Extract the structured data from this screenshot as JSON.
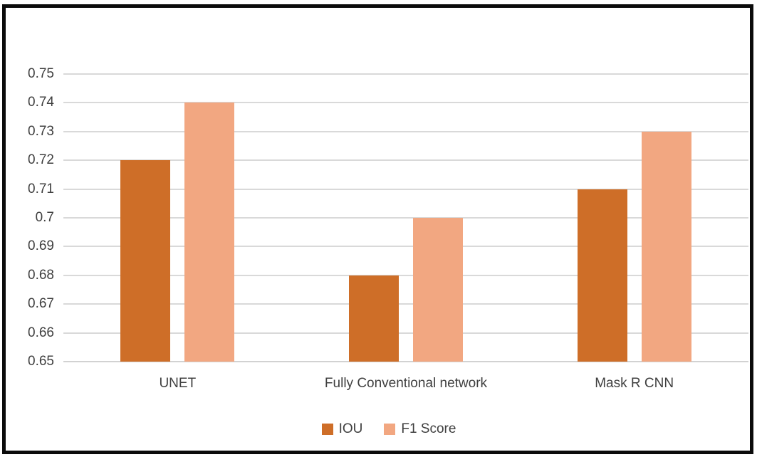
{
  "figure": {
    "background": "#ffffff",
    "border_color": "#0b0b0b"
  },
  "chart_data": {
    "type": "bar",
    "title": "",
    "xlabel": "",
    "ylabel": "",
    "categories": [
      "UNET",
      "Fully Conventional network",
      "Mask R CNN"
    ],
    "series": [
      {
        "name": "IOU",
        "color": "#CE6E28",
        "values": [
          0.72,
          0.68,
          0.71
        ]
      },
      {
        "name": "F1 Score",
        "color": "#F2A781",
        "values": [
          0.74,
          0.7,
          0.73
        ]
      }
    ],
    "ylim": [
      0.65,
      0.75
    ],
    "ytick_step": 0.01,
    "yticks": [
      {
        "value": 0.65,
        "label": "0.65"
      },
      {
        "value": 0.66,
        "label": "0.66"
      },
      {
        "value": 0.67,
        "label": "0.67"
      },
      {
        "value": 0.68,
        "label": "0.68"
      },
      {
        "value": 0.69,
        "label": "0.69"
      },
      {
        "value": 0.7,
        "label": "0.7"
      },
      {
        "value": 0.71,
        "label": "0.71"
      },
      {
        "value": 0.72,
        "label": "0.72"
      },
      {
        "value": 0.73,
        "label": "0.73"
      },
      {
        "value": 0.74,
        "label": "0.74"
      },
      {
        "value": 0.75,
        "label": "0.75"
      }
    ],
    "grid": true,
    "gridline_color": "#d9d9d9",
    "text_color": "#3f3f3f",
    "legend_position": "bottom"
  }
}
